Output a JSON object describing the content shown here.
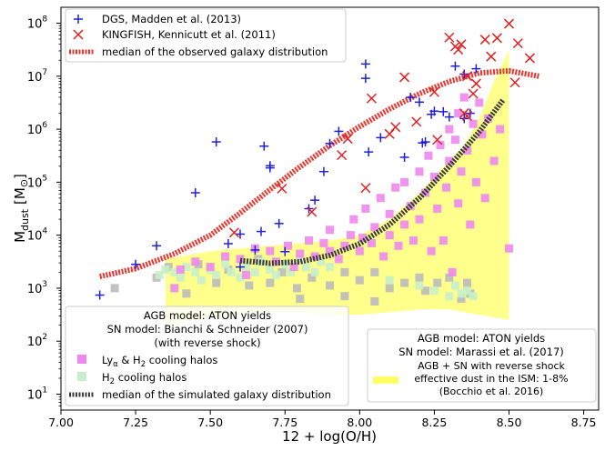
{
  "chart_data": {
    "type": "scatter",
    "xlabel": "12 + log(O/H)",
    "ylabel_main": "M",
    "ylabel_sub": "dust",
    "ylabel_unit": "[M",
    "ylabel_close": "]",
    "xlim": [
      7.0,
      8.8
    ],
    "ylim_log10": [
      0.7,
      8.3
    ],
    "y_scale": "log",
    "x_ticks": [
      7.0,
      7.25,
      7.5,
      7.75,
      8.0,
      8.25,
      8.5,
      8.75
    ],
    "x_tick_labels": [
      "7.00",
      "7.25",
      "7.50",
      "7.75",
      "8.00",
      "8.25",
      "8.50",
      "8.75"
    ],
    "y_ticks_log10": [
      1,
      2,
      3,
      4,
      5,
      6,
      7,
      8
    ],
    "y_tick_base": "10",
    "y_tick_exps": [
      "1",
      "2",
      "3",
      "4",
      "5",
      "6",
      "7",
      "8"
    ],
    "grid": false,
    "legend_top": {
      "placement": "top-left",
      "items": [
        {
          "marker": "plus",
          "color": "#1f1fdd",
          "label": "DGS, Madden et al. (2013)"
        },
        {
          "marker": "x",
          "color": "#e02020",
          "label": "KINGFISH, Kennicutt et al. (2011)"
        },
        {
          "marker": "dotted-line",
          "color": "#e8362e",
          "label": "median of the observed galaxy distribution"
        }
      ]
    },
    "legend_left": {
      "placement": "bottom-left",
      "title_lines": [
        "AGB model: ATON yields",
        "SN model: Bianchi & Schneider (2007)",
        "(with reverse shock)"
      ],
      "items": [
        {
          "marker": "square",
          "color": "#ee88ee",
          "label_main": "Ly",
          "label_sub": "α",
          "label_rest": " & H",
          "label_sub2": "2",
          "label_tail": " cooling halos"
        },
        {
          "marker": "square",
          "color": "#c8f0c8",
          "label_main": "H",
          "label_sub": "2",
          "label_rest": " cooling halos",
          "label_sub2": "",
          "label_tail": ""
        },
        {
          "marker": "dotted-line",
          "color": "#3a3a3a",
          "label_main": "median of the simulated galaxy distribution",
          "label_sub": "",
          "label_rest": "",
          "label_sub2": "",
          "label_tail": ""
        }
      ]
    },
    "legend_right": {
      "placement": "bottom-right",
      "title_lines": [
        "AGB model: ATON yields",
        "SN model: Marassi et al. (2017)"
      ],
      "band_label_lines": [
        "AGB + SN with reverse shock",
        "effective dust in the ISM: 1-8%",
        "(Bocchio et al. 2016)"
      ],
      "band_color": "#ffff66"
    },
    "series": [
      {
        "name": "DGS, Madden et al. (2013)",
        "marker": "plus",
        "color": "#1f1fdd",
        "points": [
          [
            7.13,
            2.87
          ],
          [
            7.25,
            3.45
          ],
          [
            7.32,
            3.8
          ],
          [
            7.45,
            4.8
          ],
          [
            7.52,
            5.76
          ],
          [
            7.56,
            3.84
          ],
          [
            7.6,
            3.4
          ],
          [
            7.6,
            4.02
          ],
          [
            7.65,
            3.72
          ],
          [
            7.67,
            4.07
          ],
          [
            7.68,
            5.68
          ],
          [
            7.7,
            5.31
          ],
          [
            7.7,
            5.27
          ],
          [
            7.73,
            4.22
          ],
          [
            7.75,
            3.69
          ],
          [
            7.83,
            4.5
          ],
          [
            7.85,
            4.66
          ],
          [
            7.88,
            5.2
          ],
          [
            7.9,
            5.73
          ],
          [
            7.93,
            5.96
          ],
          [
            8.02,
            7.23
          ],
          [
            8.02,
            6.96
          ],
          [
            8.03,
            5.57
          ],
          [
            8.07,
            5.84
          ],
          [
            8.15,
            5.47
          ],
          [
            8.17,
            6.6
          ],
          [
            8.2,
            6.51
          ],
          [
            8.21,
            5.74
          ],
          [
            8.22,
            5.76
          ],
          [
            8.24,
            6.28
          ],
          [
            8.25,
            6.34
          ],
          [
            8.28,
            6.33
          ],
          [
            8.3,
            6.23
          ],
          [
            8.32,
            7.19
          ],
          [
            8.35,
            6.2
          ],
          [
            8.35,
            7.04
          ],
          [
            8.37,
            6.3
          ],
          [
            8.39,
            7.14
          ]
        ]
      },
      {
        "name": "KINGFISH, Kennicutt et al. (2011)",
        "marker": "x",
        "color": "#e02020",
        "points": [
          [
            7.58,
            4.05
          ],
          [
            7.74,
            4.88
          ],
          [
            7.84,
            4.44
          ],
          [
            7.94,
            5.51
          ],
          [
            7.96,
            5.82
          ],
          [
            8.02,
            4.89
          ],
          [
            8.04,
            6.58
          ],
          [
            8.1,
            5.91
          ],
          [
            8.12,
            6.04
          ],
          [
            8.15,
            6.98
          ],
          [
            8.19,
            6.14
          ],
          [
            8.25,
            6.7
          ],
          [
            8.26,
            5.8
          ],
          [
            8.3,
            7.73
          ],
          [
            8.32,
            7.56
          ],
          [
            8.33,
            7.5
          ],
          [
            8.34,
            7.6
          ],
          [
            8.35,
            6.3
          ],
          [
            8.36,
            6.25
          ],
          [
            8.36,
            7.0
          ],
          [
            8.38,
            6.67
          ],
          [
            8.39,
            6.86
          ],
          [
            8.42,
            7.69
          ],
          [
            8.44,
            7.37
          ],
          [
            8.46,
            7.72
          ],
          [
            8.5,
            7.99
          ],
          [
            8.52,
            6.88
          ],
          [
            8.53,
            7.62
          ],
          [
            8.57,
            7.34
          ]
        ]
      },
      {
        "name": "median of the observed galaxy distribution",
        "marker": "dotted-line",
        "color": "#e8362e",
        "points": [
          [
            7.13,
            3.22
          ],
          [
            7.25,
            3.37
          ],
          [
            7.38,
            3.65
          ],
          [
            7.5,
            4.0
          ],
          [
            7.6,
            4.42
          ],
          [
            7.7,
            4.86
          ],
          [
            7.8,
            5.29
          ],
          [
            7.9,
            5.69
          ],
          [
            8.0,
            6.05
          ],
          [
            8.1,
            6.38
          ],
          [
            8.2,
            6.67
          ],
          [
            8.3,
            6.9
          ],
          [
            8.4,
            7.06
          ],
          [
            8.5,
            7.1
          ],
          [
            8.6,
            7.0
          ]
        ]
      },
      {
        "name": "median of the simulated galaxy distribution",
        "marker": "dotted-line",
        "color": "#3a3a3a",
        "points": [
          [
            7.6,
            3.52
          ],
          [
            7.7,
            3.47
          ],
          [
            7.8,
            3.5
          ],
          [
            7.9,
            3.62
          ],
          [
            8.0,
            3.84
          ],
          [
            8.1,
            4.2
          ],
          [
            8.2,
            4.7
          ],
          [
            8.3,
            5.3
          ],
          [
            8.4,
            5.95
          ],
          [
            8.48,
            6.55
          ]
        ]
      },
      {
        "name": "Lyα & H2 cooling halos",
        "marker": "square",
        "color": "#ee88ee",
        "points": [
          [
            7.4,
            3.35
          ],
          [
            7.45,
            3.5
          ],
          [
            7.5,
            3.4
          ],
          [
            7.55,
            3.6
          ],
          [
            7.6,
            3.55
          ],
          [
            7.65,
            3.75
          ],
          [
            7.7,
            3.7
          ],
          [
            7.72,
            3.5
          ],
          [
            7.76,
            3.8
          ],
          [
            7.8,
            3.65
          ],
          [
            7.83,
            3.9
          ],
          [
            7.85,
            3.6
          ],
          [
            7.88,
            3.85
          ],
          [
            7.9,
            3.7
          ],
          [
            7.9,
            4.1
          ],
          [
            7.93,
            3.55
          ],
          [
            7.95,
            3.8
          ],
          [
            7.97,
            4.0
          ],
          [
            7.98,
            4.3
          ],
          [
            8.0,
            3.7
          ],
          [
            8.01,
            3.95
          ],
          [
            8.02,
            4.5
          ],
          [
            8.04,
            3.85
          ],
          [
            8.05,
            4.15
          ],
          [
            8.07,
            4.7
          ],
          [
            8.08,
            3.6
          ],
          [
            8.1,
            4.0
          ],
          [
            8.1,
            4.4
          ],
          [
            8.12,
            4.9
          ],
          [
            8.13,
            3.8
          ],
          [
            8.15,
            4.2
          ],
          [
            8.15,
            5.0
          ],
          [
            8.17,
            4.55
          ],
          [
            8.18,
            3.9
          ],
          [
            8.2,
            5.2
          ],
          [
            8.2,
            4.3
          ],
          [
            8.22,
            4.8
          ],
          [
            8.23,
            5.5
          ],
          [
            8.24,
            3.7
          ],
          [
            8.25,
            5.1
          ],
          [
            8.26,
            4.5
          ],
          [
            8.27,
            5.7
          ],
          [
            8.28,
            3.9
          ],
          [
            8.29,
            4.9
          ],
          [
            8.3,
            5.4
          ],
          [
            8.3,
            6.0
          ],
          [
            8.31,
            3.3
          ],
          [
            8.32,
            5.8
          ],
          [
            8.33,
            4.6
          ],
          [
            8.33,
            6.3
          ],
          [
            8.34,
            5.2
          ],
          [
            8.35,
            6.6
          ],
          [
            8.36,
            5.6
          ],
          [
            8.37,
            4.2
          ],
          [
            8.38,
            6.1
          ],
          [
            8.39,
            5.0
          ],
          [
            8.4,
            6.5
          ],
          [
            8.41,
            5.9
          ],
          [
            8.42,
            4.7
          ],
          [
            8.43,
            6.2
          ],
          [
            8.45,
            5.4
          ],
          [
            8.47,
            6.0
          ],
          [
            8.5,
            3.75
          ],
          [
            7.38,
            3.0
          ],
          [
            7.62,
            3.25
          ],
          [
            7.78,
            3.4
          ]
        ]
      },
      {
        "name": "H2 cooling halos",
        "marker": "square",
        "color": "#c8f0c8",
        "points": [
          [
            7.33,
            3.25
          ],
          [
            7.35,
            3.35
          ],
          [
            7.38,
            3.3
          ],
          [
            7.4,
            3.2
          ],
          [
            7.42,
            3.4
          ],
          [
            7.45,
            3.3
          ],
          [
            7.47,
            3.15
          ],
          [
            7.5,
            3.35
          ],
          [
            7.52,
            3.25
          ],
          [
            7.55,
            3.45
          ],
          [
            7.57,
            3.3
          ],
          [
            7.6,
            3.2
          ],
          [
            7.62,
            3.4
          ],
          [
            7.65,
            3.3
          ],
          [
            7.67,
            3.5
          ],
          [
            7.7,
            3.35
          ],
          [
            7.72,
            3.25
          ],
          [
            7.75,
            3.45
          ],
          [
            7.77,
            3.3
          ],
          [
            7.8,
            3.55
          ],
          [
            7.82,
            3.4
          ],
          [
            7.85,
            3.3
          ],
          [
            7.87,
            3.5
          ],
          [
            7.9,
            3.4
          ],
          [
            8.1,
            3.15
          ],
          [
            8.2,
            3.05
          ],
          [
            8.25,
            2.95
          ],
          [
            8.3,
            2.85
          ],
          [
            8.32,
            3.05
          ],
          [
            8.34,
            2.9
          ],
          [
            8.36,
            2.95
          ],
          [
            8.38,
            2.85
          ]
        ]
      },
      {
        "name": "gray halos",
        "marker": "square",
        "color": "#bbbbbb",
        "points": [
          [
            7.18,
            3.0
          ],
          [
            7.32,
            3.2
          ],
          [
            7.36,
            3.4
          ],
          [
            7.42,
            2.9
          ],
          [
            7.46,
            3.45
          ],
          [
            7.52,
            3.1
          ],
          [
            7.56,
            3.35
          ],
          [
            7.63,
            3.05
          ],
          [
            7.66,
            3.55
          ],
          [
            7.7,
            3.1
          ],
          [
            7.74,
            3.3
          ],
          [
            7.79,
            3.0
          ],
          [
            7.84,
            3.2
          ],
          [
            7.9,
            3.05
          ],
          [
            7.95,
            3.3
          ],
          [
            8.0,
            3.15
          ],
          [
            8.05,
            3.3
          ],
          [
            8.1,
            3.0
          ],
          [
            8.15,
            3.1
          ],
          [
            8.2,
            3.2
          ],
          [
            8.22,
            2.95
          ],
          [
            8.26,
            3.1
          ],
          [
            8.3,
            3.2
          ],
          [
            8.34,
            2.8
          ],
          [
            8.36,
            3.1
          ],
          [
            8.37,
            2.9
          ],
          [
            7.8,
            2.8
          ],
          [
            7.95,
            2.85
          ],
          [
            8.05,
            2.75
          ]
        ]
      }
    ],
    "band": {
      "name": "AGB + SN with reverse shock, effective dust in the ISM: 1-8%",
      "color": "#ffff66",
      "x": [
        7.35,
        7.4,
        7.5,
        7.6,
        7.7,
        7.8,
        7.9,
        8.0,
        8.1,
        8.2,
        8.3,
        8.35,
        8.4,
        8.45,
        8.5
      ],
      "upper_log10": [
        3.55,
        3.6,
        3.7,
        3.75,
        3.8,
        3.85,
        3.9,
        4.0,
        4.3,
        4.8,
        5.4,
        5.7,
        6.2,
        6.9,
        7.5
      ],
      "lower_log10": [
        2.3,
        2.35,
        2.45,
        2.5,
        2.55,
        2.55,
        2.5,
        2.5,
        2.55,
        2.6,
        2.6,
        2.55,
        2.5,
        2.45,
        2.4
      ]
    }
  }
}
